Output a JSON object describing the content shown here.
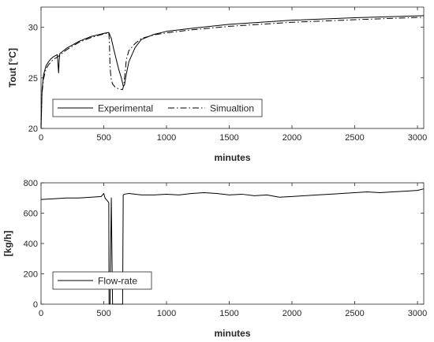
{
  "chart_data": [
    {
      "type": "line",
      "title": "",
      "xlabel": "minutes",
      "ylabel": "Tout [°C]",
      "xlim": [
        0,
        3050
      ],
      "ylim": [
        20,
        32
      ],
      "xticks": [
        0,
        500,
        1000,
        1500,
        2000,
        2500,
        3000
      ],
      "yticks": [
        20,
        25,
        30
      ],
      "grid": false,
      "legend": {
        "placement": "bottom-left",
        "orientation": "horizontal"
      },
      "series": [
        {
          "name": "Experimental",
          "style": "solid",
          "color": "#000000",
          "x": [
            0,
            8,
            20,
            40,
            60,
            80,
            100,
            130,
            135,
            140,
            145,
            150,
            200,
            300,
            400,
            500,
            540,
            560,
            580,
            600,
            620,
            640,
            655,
            665,
            680,
            700,
            750,
            800,
            900,
            1000,
            1200,
            1500,
            2000,
            2500,
            3050
          ],
          "y": [
            20,
            23.8,
            25.3,
            26.2,
            26.6,
            26.9,
            27.1,
            27.3,
            26.4,
            25.5,
            26.8,
            27.4,
            27.9,
            28.6,
            29.1,
            29.4,
            29.5,
            28.9,
            27.8,
            26.8,
            25.8,
            25.0,
            24.2,
            24.3,
            25.4,
            26.6,
            28.0,
            28.8,
            29.3,
            29.6,
            29.9,
            30.3,
            30.7,
            30.95,
            31.15
          ]
        },
        {
          "name": "Simualtion",
          "style": "dash-dot",
          "color": "#000000",
          "x": [
            0,
            8,
            20,
            40,
            60,
            80,
            100,
            130,
            150,
            200,
            300,
            400,
            500,
            540,
            545,
            550,
            560,
            570,
            590,
            620,
            650,
            660,
            670,
            680,
            700,
            750,
            800,
            900,
            1000,
            1200,
            1500,
            2000,
            2500,
            3050
          ],
          "y": [
            20,
            23.5,
            24.9,
            25.9,
            26.3,
            26.6,
            26.85,
            27.05,
            27.25,
            27.75,
            28.5,
            29.0,
            29.35,
            29.45,
            28.5,
            26.0,
            24.8,
            24.4,
            24.1,
            23.9,
            23.85,
            24.3,
            25.6,
            26.8,
            27.7,
            28.4,
            28.9,
            29.25,
            29.45,
            29.75,
            30.1,
            30.5,
            30.75,
            31.0
          ]
        }
      ]
    },
    {
      "type": "line",
      "title": "",
      "xlabel": "minutes",
      "ylabel": "[kg/h]",
      "xlim": [
        0,
        3050
      ],
      "ylim": [
        0,
        800
      ],
      "xticks": [
        0,
        500,
        1000,
        1500,
        2000,
        2500,
        3000
      ],
      "yticks": [
        0,
        200,
        400,
        600,
        800
      ],
      "grid": false,
      "legend": {
        "placement": "bottom-left"
      },
      "series": [
        {
          "name": "Flow-rate",
          "style": "solid",
          "color": "#000000",
          "x": [
            0,
            100,
            200,
            300,
            400,
            480,
            500,
            510,
            520,
            530,
            540,
            542,
            550,
            560,
            570,
            650,
            655,
            665,
            700,
            800,
            900,
            1000,
            1100,
            1200,
            1300,
            1400,
            1500,
            1600,
            1700,
            1800,
            1900,
            2000,
            2100,
            2200,
            2300,
            2400,
            2500,
            2600,
            2700,
            2800,
            2900,
            3000,
            3050
          ],
          "y": [
            690,
            695,
            700,
            700,
            705,
            710,
            730,
            700,
            690,
            680,
            670,
            0,
            0,
            700,
            0,
            0,
            720,
            725,
            730,
            720,
            720,
            725,
            720,
            730,
            735,
            730,
            720,
            725,
            715,
            720,
            705,
            710,
            715,
            720,
            725,
            730,
            735,
            740,
            735,
            740,
            745,
            750,
            760
          ]
        }
      ]
    }
  ]
}
